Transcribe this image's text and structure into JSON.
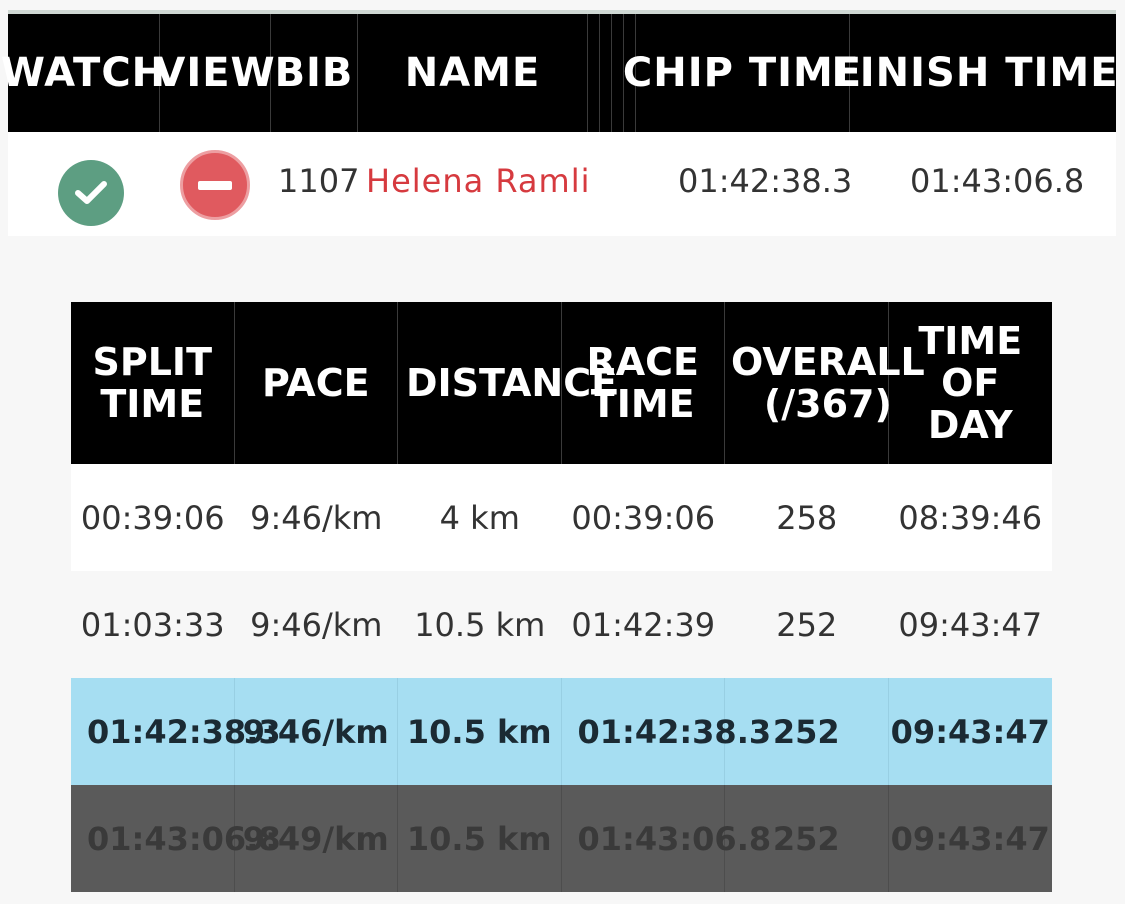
{
  "results_header": {
    "watch": "WATCH",
    "view": "VIEW",
    "bib": "BIB",
    "name": "NAME",
    "chip_time": "CHIP TIME",
    "finish_time": "FINISH TIME"
  },
  "result": {
    "bib": "1107",
    "name": "Helena Ramli",
    "chip_time": "01:42:38.3",
    "finish_time": "01:43:06.8",
    "watch_icon": "check-circle-icon",
    "view_icon": "minus-circle-icon"
  },
  "splits_header": {
    "split_time": "SPLIT\nTIME",
    "pace": "PACE",
    "distance": "DISTANCE",
    "race_time": "RACE\nTIME",
    "overall": "OVERALL\n(/367)",
    "time_of_day": "TIME\nOF DAY"
  },
  "splits_rows": [
    {
      "split_time": "00:39:06",
      "pace": "9:46/km",
      "distance": "4 km",
      "race_time": "00:39:06",
      "overall": "258",
      "time_of_day": "08:39:46"
    },
    {
      "split_time": "01:03:33",
      "pace": "9:46/km",
      "distance": "10.5 km",
      "race_time": "01:42:39",
      "overall": "252",
      "time_of_day": "09:43:47"
    },
    {
      "split_time": "01:42:38.3",
      "pace": "9:46/km",
      "distance": "10.5 km",
      "race_time": "01:42:38.3",
      "overall": "252",
      "time_of_day": "09:43:47"
    },
    {
      "split_time": "01:43:06.8",
      "pace": "9:49/km",
      "distance": "10.5 km",
      "race_time": "01:43:06.8",
      "overall": "252",
      "time_of_day": "09:43:47"
    }
  ],
  "colors": {
    "header_bg": "#000000",
    "name_red": "#d63a3f",
    "check_green": "#5d9e82",
    "highlight_blue": "#a6def2",
    "dark_row": "#5a5a5a"
  }
}
